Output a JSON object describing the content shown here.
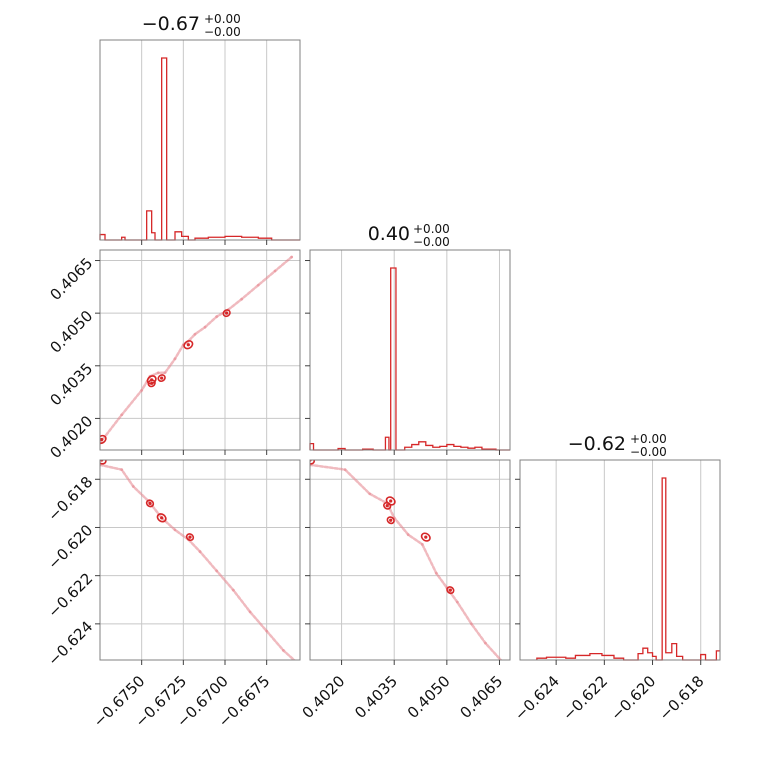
{
  "chart_data": {
    "type": "corner",
    "color": "#d62728",
    "parameters": [
      {
        "title_main": "−0.67",
        "title_sup": "+0.00",
        "title_sub": "−0.00",
        "range": [
          -0.6775,
          -0.6655
        ],
        "ticks": [
          -0.675,
          -0.6725,
          -0.67,
          -0.6675
        ],
        "tick_labels": [
          "−0.6750",
          "−0.6725",
          "−0.6700",
          "−0.6675"
        ]
      },
      {
        "title_main": "0.40",
        "title_sup": "+0.00",
        "title_sub": "−0.00",
        "range": [
          0.4011,
          0.4068
        ],
        "ticks": [
          0.402,
          0.4035,
          0.405,
          0.4065
        ],
        "tick_labels": [
          "0.4020",
          "0.4035",
          "0.4050",
          "0.4065"
        ]
      },
      {
        "title_main": "−0.62",
        "title_sup": "+0.00",
        "title_sub": "−0.00",
        "range": [
          -0.6255,
          -0.6172
        ],
        "ticks": [
          -0.624,
          -0.622,
          -0.62,
          -0.618
        ],
        "tick_labels": [
          "−0.624",
          "−0.622",
          "−0.620",
          "−0.618"
        ]
      }
    ],
    "histograms": [
      {
        "param": 0,
        "steps": [
          [
            -0.6775,
            0.03
          ],
          [
            -0.6772,
            0
          ],
          [
            -0.6762,
            0.015
          ],
          [
            -0.676,
            0
          ],
          [
            -0.6747,
            0.16
          ],
          [
            -0.6744,
            0.04
          ],
          [
            -0.6742,
            0
          ],
          [
            -0.6738,
            1.0
          ],
          [
            -0.6735,
            0
          ],
          [
            -0.673,
            0.045
          ],
          [
            -0.6726,
            0.02
          ],
          [
            -0.6722,
            0
          ],
          [
            -0.6718,
            0.01
          ],
          [
            -0.671,
            0.015
          ],
          [
            -0.67,
            0.02
          ],
          [
            -0.669,
            0.015
          ],
          [
            -0.668,
            0.01
          ],
          [
            -0.6672,
            0
          ]
        ]
      },
      {
        "param": 1,
        "steps": [
          [
            0.4011,
            0.035
          ],
          [
            0.4012,
            0
          ],
          [
            0.4019,
            0.008
          ],
          [
            0.4021,
            0
          ],
          [
            0.4026,
            0.005
          ],
          [
            0.4029,
            0
          ],
          [
            0.40325,
            0.07
          ],
          [
            0.40335,
            0
          ],
          [
            0.4034,
            1.0
          ],
          [
            0.40355,
            0
          ],
          [
            0.4038,
            0.015
          ],
          [
            0.404,
            0.03
          ],
          [
            0.4042,
            0.045
          ],
          [
            0.4044,
            0.025
          ],
          [
            0.4046,
            0.015
          ],
          [
            0.4048,
            0.02
          ],
          [
            0.405,
            0.03
          ],
          [
            0.4052,
            0.02
          ],
          [
            0.4054,
            0.015
          ],
          [
            0.4056,
            0.01
          ],
          [
            0.4058,
            0.015
          ],
          [
            0.406,
            0.005
          ],
          [
            0.4064,
            0
          ]
        ]
      },
      {
        "param": 2,
        "steps": [
          [
            -0.6248,
            0.01
          ],
          [
            -0.6244,
            0.015
          ],
          [
            -0.6236,
            0.01
          ],
          [
            -0.6232,
            0.025
          ],
          [
            -0.6226,
            0.035
          ],
          [
            -0.6221,
            0.025
          ],
          [
            -0.6216,
            0.01
          ],
          [
            -0.6212,
            0
          ],
          [
            -0.6206,
            0.035
          ],
          [
            -0.6204,
            0.065
          ],
          [
            -0.6202,
            0.04
          ],
          [
            -0.62,
            0.02
          ],
          [
            -0.61985,
            0
          ],
          [
            -0.6196,
            1.0
          ],
          [
            -0.61945,
            0.04
          ],
          [
            -0.6192,
            0.09
          ],
          [
            -0.619,
            0.02
          ],
          [
            -0.61875,
            0
          ],
          [
            -0.618,
            0.03
          ],
          [
            -0.6178,
            0
          ],
          [
            -0.61735,
            0.05
          ]
        ]
      }
    ],
    "scatter": [
      {
        "x_param": 0,
        "y_param": 1,
        "points": [
          [
            -0.6775,
            0.4013
          ],
          [
            -0.6762,
            0.4021
          ],
          [
            -0.675,
            0.4028
          ],
          [
            -0.6745,
            0.4032
          ],
          [
            -0.674,
            0.4033
          ],
          [
            -0.6736,
            0.4033
          ],
          [
            -0.673,
            0.4037
          ],
          [
            -0.6725,
            0.4041
          ],
          [
            -0.6722,
            0.4042
          ],
          [
            -0.6718,
            0.4044
          ],
          [
            -0.6712,
            0.4046
          ],
          [
            -0.6705,
            0.4049
          ],
          [
            -0.6698,
            0.4051
          ],
          [
            -0.669,
            0.4054
          ],
          [
            -0.668,
            0.4058
          ],
          [
            -0.667,
            0.4062
          ],
          [
            -0.666,
            0.4066
          ]
        ]
      },
      {
        "x_param": 0,
        "y_param": 2,
        "points": [
          [
            -0.6775,
            -0.6174
          ],
          [
            -0.6762,
            -0.6176
          ],
          [
            -0.6755,
            -0.6183
          ],
          [
            -0.6746,
            -0.6189
          ],
          [
            -0.6738,
            -0.6196
          ],
          [
            -0.673,
            -0.6201
          ],
          [
            -0.6722,
            -0.6205
          ],
          [
            -0.6715,
            -0.621
          ],
          [
            -0.6705,
            -0.6218
          ],
          [
            -0.6695,
            -0.6226
          ],
          [
            -0.6685,
            -0.6235
          ],
          [
            -0.6675,
            -0.6243
          ],
          [
            -0.6665,
            -0.6251
          ],
          [
            -0.6657,
            -0.6256
          ]
        ]
      },
      {
        "x_param": 1,
        "y_param": 2,
        "points": [
          [
            0.4011,
            -0.6174
          ],
          [
            0.4021,
            -0.6176
          ],
          [
            0.4028,
            -0.6186
          ],
          [
            0.4033,
            -0.619
          ],
          [
            0.4035,
            -0.6196
          ],
          [
            0.4039,
            -0.6203
          ],
          [
            0.4043,
            -0.6207
          ],
          [
            0.4047,
            -0.6219
          ],
          [
            0.405,
            -0.6225
          ],
          [
            0.4053,
            -0.6231
          ],
          [
            0.4057,
            -0.624
          ],
          [
            0.4061,
            -0.6248
          ],
          [
            0.4066,
            -0.6256
          ]
        ]
      }
    ],
    "contours": [
      {
        "x_param": 0,
        "y_param": 1,
        "centers": [
          [
            -0.6774,
            0.4014
          ],
          [
            -0.6738,
            0.40315
          ],
          [
            -0.6744,
            0.4031
          ],
          [
            -0.6744,
            0.403
          ],
          [
            -0.6722,
            0.4041
          ],
          [
            -0.6699,
            0.405
          ]
        ]
      },
      {
        "x_param": 0,
        "y_param": 2,
        "centers": [
          [
            -0.6774,
            -0.6172
          ],
          [
            -0.6745,
            -0.619
          ],
          [
            -0.6738,
            -0.6196
          ],
          [
            -0.6721,
            -0.6204
          ]
        ]
      },
      {
        "x_param": 1,
        "y_param": 2,
        "centers": [
          [
            0.4011,
            -0.6172
          ],
          [
            0.4033,
            -0.6191
          ],
          [
            0.4034,
            -0.6189
          ],
          [
            0.4034,
            -0.6197
          ],
          [
            0.4044,
            -0.6204
          ],
          [
            0.4051,
            -0.6226
          ]
        ]
      }
    ]
  }
}
